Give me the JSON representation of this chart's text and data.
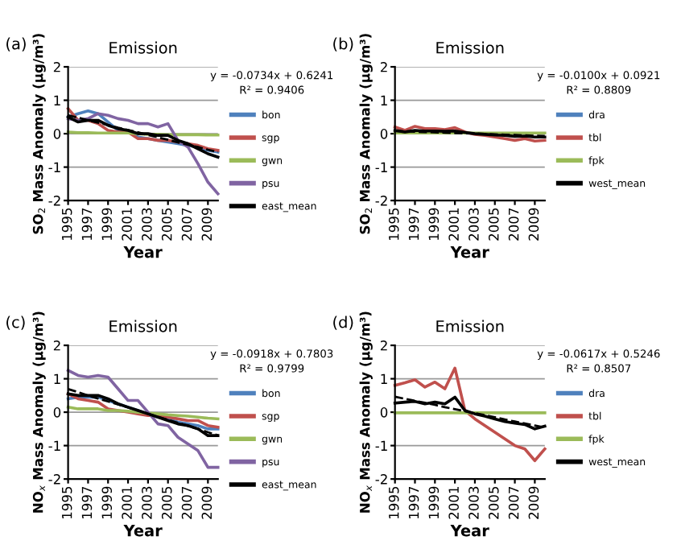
{
  "chart_data": [
    {
      "type": "line",
      "title": "Emission",
      "xlabel": "Year",
      "ylabel": "SO$_{2}$ Mass Anomaly (μg/m³)",
      "annotations": [
        "(a)",
        "y = -0.0734x + 0.6241",
        "R² = 0.9406"
      ],
      "x": [
        1995,
        1996,
        1997,
        1998,
        1999,
        2000,
        2001,
        2002,
        2003,
        2004,
        2005,
        2006,
        2007,
        2008,
        2009,
        2010
      ],
      "xlim": [
        1995,
        2010
      ],
      "xticks": [
        1995,
        1997,
        1999,
        2001,
        2003,
        2005,
        2007,
        2009
      ],
      "ylim": [
        -2,
        2
      ],
      "yticks": [
        -2,
        -1,
        0,
        1,
        2
      ],
      "grid": "y",
      "legend": "right",
      "marker": "none",
      "series": [
        {
          "name": "bon",
          "color": "#4f81bd",
          "values": [
            0.5,
            0.6,
            0.68,
            0.6,
            0.35,
            0.1,
            0.05,
            -0.1,
            -0.15,
            -0.2,
            -0.25,
            -0.3,
            -0.35,
            -0.4,
            -0.5,
            -0.55
          ]
        },
        {
          "name": "sgp",
          "color": "#c0504d",
          "values": [
            0.75,
            0.4,
            0.4,
            0.3,
            0.1,
            0.05,
            0.05,
            -0.15,
            -0.15,
            -0.2,
            -0.2,
            -0.25,
            -0.3,
            -0.35,
            -0.45,
            -0.5
          ]
        },
        {
          "name": "gwn",
          "color": "#9bbb59",
          "values": [
            0.05,
            0.03,
            0.03,
            0.02,
            0.02,
            0.02,
            0.02,
            0,
            -0.02,
            -0.02,
            -0.03,
            -0.03,
            -0.03,
            -0.03,
            -0.04,
            -0.04
          ]
        },
        {
          "name": "psu",
          "color": "#8064a2",
          "values": [
            0.45,
            0.4,
            0.45,
            0.6,
            0.55,
            0.45,
            0.4,
            0.3,
            0.3,
            0.2,
            0.3,
            -0.2,
            -0.4,
            -0.9,
            -1.45,
            -1.8
          ]
        },
        {
          "name": "east_mean",
          "color": "#000000",
          "values": [
            0.5,
            0.35,
            0.4,
            0.4,
            0.25,
            0.15,
            0.1,
            0,
            0,
            -0.05,
            -0.05,
            -0.2,
            -0.3,
            -0.45,
            -0.6,
            -0.7
          ]
        },
        {
          "color": "#000000",
          "line_style": "dashed",
          "values": [
            0.55,
            0.48,
            0.4,
            0.33,
            0.26,
            0.18,
            0.11,
            0.04,
            -0.04,
            -0.11,
            -0.18,
            -0.26,
            -0.33,
            -0.4,
            -0.48,
            -0.55
          ]
        }
      ]
    },
    {
      "type": "line",
      "title": "Emission",
      "xlabel": "Year",
      "ylabel": "SO$_{2}$ Mass Anomaly (μg/m³)",
      "annotations": [
        "(b)",
        "y = -0.0100x + 0.0921",
        "R² = 0.8809"
      ],
      "x": [
        1995,
        1996,
        1997,
        1998,
        1999,
        2000,
        2001,
        2002,
        2003,
        2004,
        2005,
        2006,
        2007,
        2008,
        2009,
        2010
      ],
      "xlim": [
        1995,
        2010
      ],
      "xticks": [
        1995,
        1997,
        1999,
        2001,
        2003,
        2005,
        2007,
        2009
      ],
      "ylim": [
        -2,
        2
      ],
      "yticks": [
        -2,
        -1,
        0,
        1,
        2
      ],
      "grid": "y",
      "legend": "right",
      "marker": "none",
      "series": [
        {
          "name": "dra",
          "color": "#4f81bd",
          "values": [
            null,
            null,
            null,
            null,
            null,
            null,
            null,
            null,
            null,
            null,
            null,
            null,
            null,
            null,
            null,
            null
          ]
        },
        {
          "name": "tbl",
          "color": "#c0504d",
          "values": [
            0.2,
            0.1,
            0.22,
            0.15,
            0.15,
            0.12,
            0.18,
            0.05,
            -0.02,
            -0.05,
            -0.1,
            -0.15,
            -0.2,
            -0.15,
            -0.22,
            -0.2
          ]
        },
        {
          "name": "fpk",
          "color": "#9bbb59",
          "values": [
            0.02,
            0.02,
            0.02,
            0.02,
            0.02,
            0.02,
            0.02,
            0.02,
            0.02,
            0.02,
            0.02,
            0.02,
            0.02,
            0.02,
            0.02,
            0.02
          ]
        },
        {
          "name": "west_mean",
          "color": "#000000",
          "values": [
            0.1,
            0.05,
            0.1,
            0.08,
            0.08,
            0.07,
            0.08,
            0.04,
            0,
            -0.02,
            -0.04,
            -0.05,
            -0.08,
            -0.07,
            -0.1,
            -0.1
          ]
        },
        {
          "color": "#000000",
          "line_style": "dashed",
          "values": [
            0.08,
            0.07,
            0.06,
            0.05,
            0.04,
            0.03,
            0.02,
            0.01,
            0.0,
            -0.01,
            -0.02,
            -0.03,
            -0.04,
            -0.05,
            -0.06,
            -0.07
          ]
        }
      ]
    },
    {
      "type": "line",
      "title": "Emission",
      "xlabel": "Year",
      "ylabel": "NO$_{x}$ Mass Anomaly (μg/m³)",
      "annotations": [
        "(c)",
        "y = -0.0918x + 0.7803",
        "R² = 0.9799"
      ],
      "x": [
        1995,
        1996,
        1997,
        1998,
        1999,
        2000,
        2001,
        2002,
        2003,
        2004,
        2005,
        2006,
        2007,
        2008,
        2009,
        2010
      ],
      "xlim": [
        1995,
        2010
      ],
      "xticks": [
        1995,
        1997,
        1999,
        2001,
        2003,
        2005,
        2007,
        2009
      ],
      "ylim": [
        -2,
        2
      ],
      "yticks": [
        -2,
        -1,
        0,
        1,
        2
      ],
      "grid": "y",
      "legend": "right",
      "marker": "none",
      "series": [
        {
          "name": "bon",
          "color": "#4f81bd",
          "values": [
            0.4,
            0.45,
            0.45,
            0.45,
            0.35,
            0.25,
            0.15,
            0.05,
            -0.05,
            -0.15,
            -0.2,
            -0.3,
            -0.35,
            -0.4,
            -0.5,
            -0.5
          ]
        },
        {
          "name": "sgp",
          "color": "#c0504d",
          "values": [
            0.55,
            0.4,
            0.35,
            0.3,
            0.1,
            0.05,
            0,
            -0.05,
            -0.1,
            -0.1,
            -0.15,
            -0.2,
            -0.25,
            -0.25,
            -0.4,
            -0.45
          ]
        },
        {
          "name": "gwn",
          "color": "#9bbb59",
          "values": [
            0.15,
            0.1,
            0.1,
            0.1,
            0.05,
            0.05,
            0.03,
            0,
            -0.03,
            -0.05,
            -0.08,
            -0.1,
            -0.12,
            -0.15,
            -0.18,
            -0.2
          ]
        },
        {
          "name": "psu",
          "color": "#8064a2",
          "values": [
            1.25,
            1.1,
            1.05,
            1.1,
            1.05,
            0.7,
            0.35,
            0.35,
            0,
            -0.35,
            -0.4,
            -0.75,
            -0.95,
            -1.15,
            -1.65,
            -1.65
          ]
        },
        {
          "name": "east_mean",
          "color": "#000000",
          "values": [
            0.55,
            0.5,
            0.5,
            0.5,
            0.4,
            0.25,
            0.15,
            0.05,
            -0.05,
            -0.15,
            -0.25,
            -0.35,
            -0.4,
            -0.5,
            -0.7,
            -0.7
          ]
        },
        {
          "color": "#000000",
          "line_style": "dashed",
          "values": [
            0.69,
            0.6,
            0.5,
            0.41,
            0.32,
            0.23,
            0.14,
            0.05,
            -0.05,
            -0.14,
            -0.23,
            -0.32,
            -0.41,
            -0.5,
            -0.6,
            -0.69
          ]
        }
      ]
    },
    {
      "type": "line",
      "title": "Emission",
      "xlabel": "Year",
      "ylabel": "NO$_{x}$ Mass Anomaly (μg/m³)",
      "annotations": [
        "(d)",
        "y = -0.0617x + 0.5246",
        "R² = 0.8507"
      ],
      "x": [
        1995,
        1996,
        1997,
        1998,
        1999,
        2000,
        2001,
        2002,
        2003,
        2004,
        2005,
        2006,
        2007,
        2008,
        2009,
        2010
      ],
      "xlim": [
        1995,
        2010
      ],
      "xticks": [
        1995,
        1997,
        1999,
        2001,
        2003,
        2005,
        2007,
        2009
      ],
      "ylim": [
        -2,
        2
      ],
      "yticks": [
        -2,
        -1,
        0,
        1,
        2
      ],
      "grid": "y",
      "legend": "right",
      "marker": "none",
      "series": [
        {
          "name": "dra",
          "color": "#4f81bd",
          "values": [
            null,
            null,
            null,
            null,
            null,
            null,
            null,
            null,
            null,
            null,
            null,
            null,
            null,
            null,
            null,
            null
          ]
        },
        {
          "name": "tbl",
          "color": "#c0504d",
          "values": [
            0.8,
            0.88,
            0.97,
            0.75,
            0.9,
            0.7,
            1.32,
            0.05,
            -0.2,
            -0.4,
            -0.6,
            -0.8,
            -1.0,
            -1.1,
            -1.45,
            -1.1
          ]
        },
        {
          "name": "fpk",
          "color": "#9bbb59",
          "values": [
            -0.02,
            -0.02,
            -0.02,
            -0.02,
            -0.02,
            -0.02,
            -0.02,
            -0.02,
            -0.02,
            -0.02,
            -0.02,
            -0.02,
            -0.02,
            -0.02,
            -0.02,
            -0.02
          ]
        },
        {
          "name": "west_mean",
          "color": "#000000",
          "values": [
            0.27,
            0.3,
            0.32,
            0.25,
            0.3,
            0.25,
            0.45,
            0.05,
            -0.05,
            -0.12,
            -0.2,
            -0.28,
            -0.33,
            -0.37,
            -0.5,
            -0.42
          ]
        },
        {
          "color": "#000000",
          "line_style": "dashed",
          "values": [
            0.46,
            0.4,
            0.34,
            0.28,
            0.22,
            0.15,
            0.09,
            0.03,
            -0.03,
            -0.09,
            -0.15,
            -0.22,
            -0.28,
            -0.34,
            -0.4,
            -0.46
          ]
        }
      ]
    }
  ]
}
